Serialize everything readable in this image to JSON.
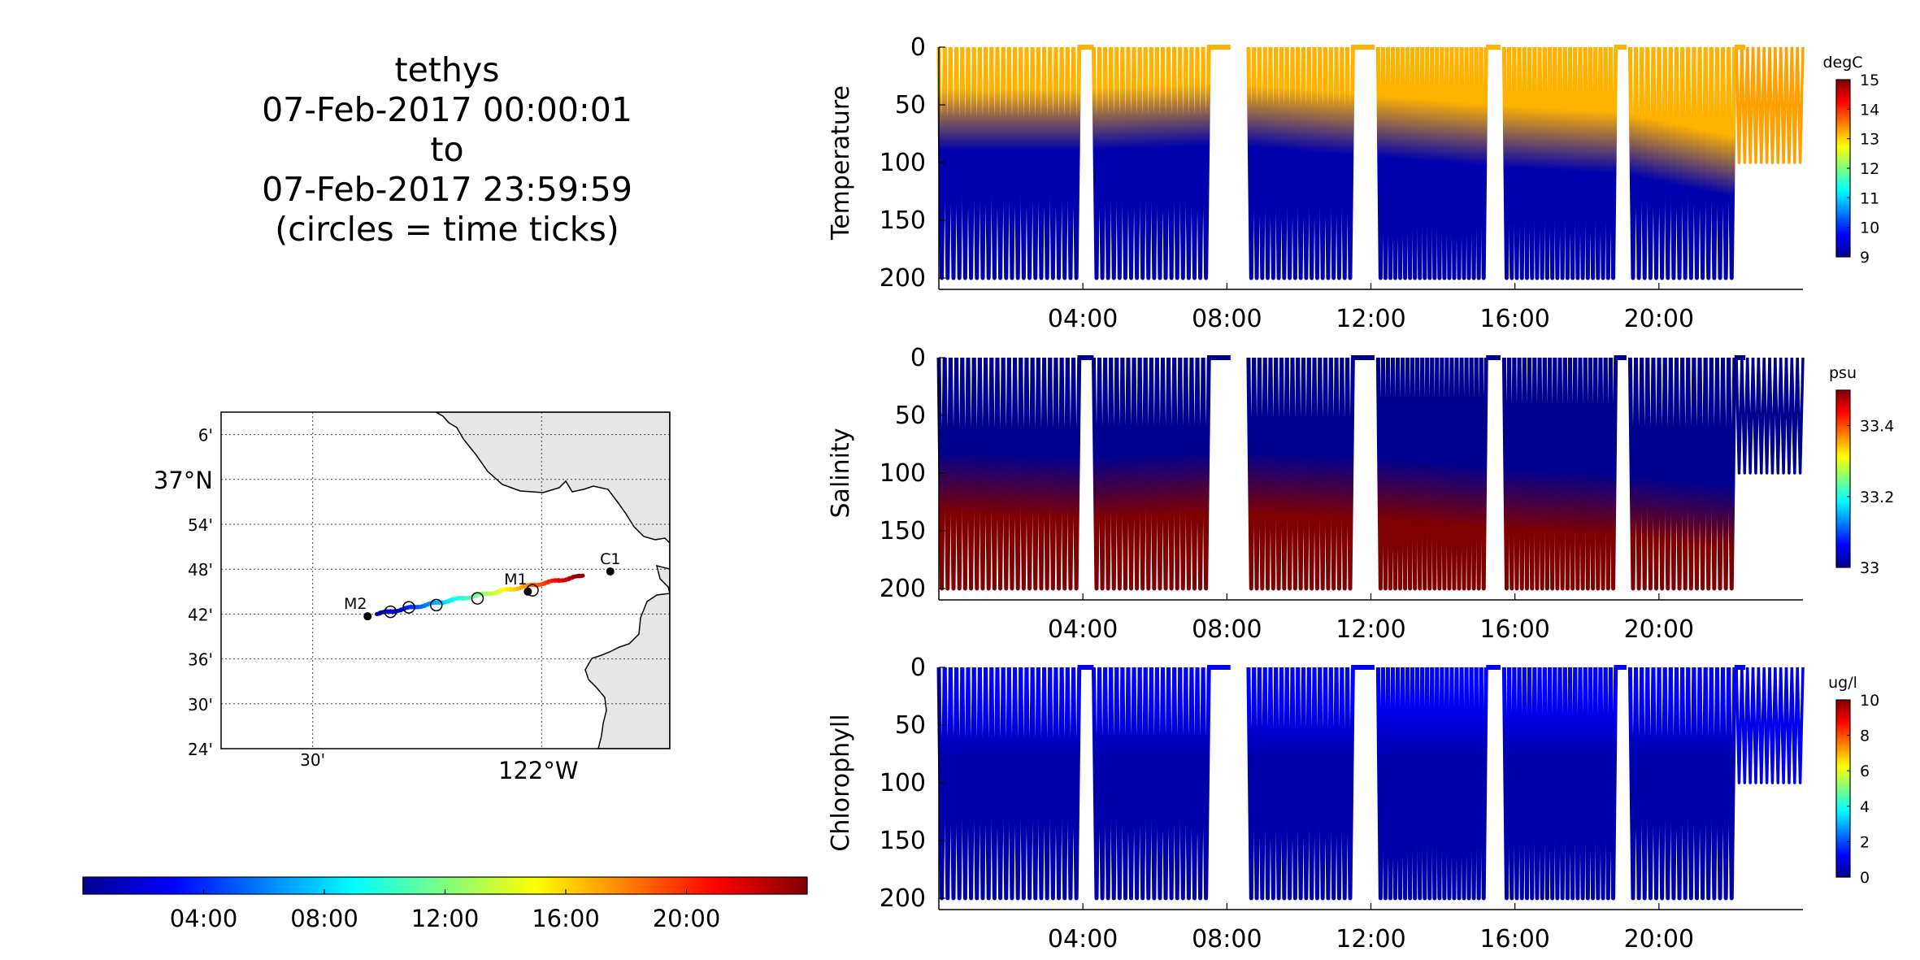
{
  "title": {
    "platform": "tethys",
    "start": "07-Feb-2017 00:00:01",
    "to": "to",
    "end": "07-Feb-2017 23:59:59",
    "note": "(circles = time ticks)"
  },
  "chart_data": [
    {
      "type": "map",
      "lat_ticks": [
        "6'",
        "37°N",
        "54'",
        "48'",
        "42'",
        "36'",
        "30'",
        "24'"
      ],
      "lat_values": [
        37.1,
        37.0,
        36.9,
        36.8,
        36.7,
        36.6,
        36.5,
        36.4
      ],
      "lon_ticks": [
        "30'",
        "122°W"
      ],
      "lon_values": [
        -122.5,
        -122.0
      ],
      "xlim": [
        -122.7,
        -121.72
      ],
      "ylim": [
        36.4,
        37.15
      ],
      "grid": true,
      "stations": [
        {
          "name": "M2",
          "lon": -122.38,
          "lat": 36.695
        },
        {
          "name": "M1",
          "lon": -122.03,
          "lat": 36.75
        },
        {
          "name": "C1",
          "lon": -121.85,
          "lat": 36.795
        }
      ],
      "track_start": {
        "lon": -122.36,
        "lat": 36.7
      },
      "track_end": {
        "lon": -121.91,
        "lat": 36.785
      },
      "time_tick_circles": [
        {
          "lon": -122.33,
          "lat": 36.705
        },
        {
          "lon": -122.29,
          "lat": 36.715
        },
        {
          "lon": -122.23,
          "lat": 36.72
        },
        {
          "lon": -122.14,
          "lat": 36.735
        },
        {
          "lon": -122.02,
          "lat": 36.753
        }
      ],
      "colorbar": {
        "ticks": [
          "04:00",
          "08:00",
          "12:00",
          "16:00",
          "20:00"
        ],
        "tick_hours": [
          4,
          8,
          12,
          16,
          20
        ],
        "range_hours": [
          0,
          24
        ]
      }
    },
    {
      "type": "heatmap",
      "ylabel": "Temperature",
      "unit": "degC",
      "ylim": [
        200,
        0
      ],
      "yticks": [
        "0",
        "50",
        "100",
        "150",
        "200"
      ],
      "xticks": [
        "04:00",
        "08:00",
        "12:00",
        "16:00",
        "20:00"
      ],
      "xtick_hours": [
        4,
        8,
        12,
        16,
        20
      ],
      "xlim_hours": [
        0,
        24
      ],
      "clim": [
        9,
        15
      ],
      "cticks": [
        "9",
        "10",
        "11",
        "12",
        "13",
        "14",
        "15"
      ],
      "surface_value": 13.2,
      "deep_value": 9.2,
      "transition_depth": [
        [
          0,
          60
        ],
        [
          4,
          60
        ],
        [
          8,
          55
        ],
        [
          12,
          65
        ],
        [
          16,
          75
        ],
        [
          19,
          80
        ],
        [
          22,
          100
        ]
      ],
      "last_segment_max_depth": 100,
      "last_segment_value": 13.3
    },
    {
      "type": "heatmap",
      "ylabel": "Salinity",
      "unit": "psu",
      "ylim": [
        200,
        0
      ],
      "yticks": [
        "0",
        "50",
        "100",
        "150",
        "200"
      ],
      "xticks": [
        "04:00",
        "08:00",
        "12:00",
        "16:00",
        "20:00"
      ],
      "xtick_hours": [
        4,
        8,
        12,
        16,
        20
      ],
      "xlim_hours": [
        0,
        24
      ],
      "clim": [
        33,
        33.5
      ],
      "cticks": [
        "33",
        "33.2",
        "33.4"
      ],
      "surface_value": 33.0,
      "deep_value": 33.5,
      "transition_depth": [
        [
          0,
          105
        ],
        [
          4,
          110
        ],
        [
          8,
          105
        ],
        [
          12,
          110
        ],
        [
          16,
          120
        ],
        [
          19,
          125
        ],
        [
          22,
          135
        ]
      ],
      "last_segment_max_depth": 100,
      "last_segment_value": 33.0
    },
    {
      "type": "heatmap",
      "ylabel": "Chlorophyll",
      "unit": "ug/l",
      "ylim": [
        200,
        0
      ],
      "yticks": [
        "0",
        "50",
        "100",
        "150",
        "200"
      ],
      "xticks": [
        "04:00",
        "08:00",
        "12:00",
        "16:00",
        "20:00"
      ],
      "xtick_hours": [
        4,
        8,
        12,
        16,
        20
      ],
      "xlim_hours": [
        0,
        24
      ],
      "clim": [
        0,
        10
      ],
      "cticks": [
        "0",
        "2",
        "4",
        "6",
        "8",
        "10"
      ],
      "cvalues": [
        0,
        2,
        4,
        6,
        8,
        10
      ],
      "surface_value": 1.2,
      "deep_value": 0.3,
      "transition_depth": [
        [
          0,
          50
        ],
        [
          4,
          50
        ],
        [
          8,
          50
        ],
        [
          12,
          50
        ],
        [
          16,
          50
        ],
        [
          19,
          50
        ],
        [
          22,
          50
        ]
      ],
      "last_segment_max_depth": 100,
      "last_segment_value": 1.0
    }
  ],
  "profile_timing": {
    "segments": [
      [
        0.0,
        3.9,
        24
      ],
      [
        4.3,
        7.5,
        20
      ],
      [
        8.6,
        11.5,
        19
      ],
      [
        12.2,
        15.2,
        22
      ],
      [
        15.7,
        18.8,
        22
      ],
      [
        19.2,
        22.1,
        18
      ],
      [
        22.15,
        24.0,
        12
      ]
    ],
    "surface_gaps": [
      [
        3.85,
        4.3
      ],
      [
        7.45,
        8.1
      ],
      [
        11.45,
        12.1
      ],
      [
        15.2,
        15.6
      ],
      [
        18.75,
        19.1
      ],
      [
        22.1,
        22.4
      ]
    ],
    "colors": {
      "jet": [
        "#00008f",
        "#0000ff",
        "#007fff",
        "#00ffff",
        "#7fff7f",
        "#ffff00",
        "#ff7f00",
        "#ff0000",
        "#7f0000"
      ]
    }
  }
}
